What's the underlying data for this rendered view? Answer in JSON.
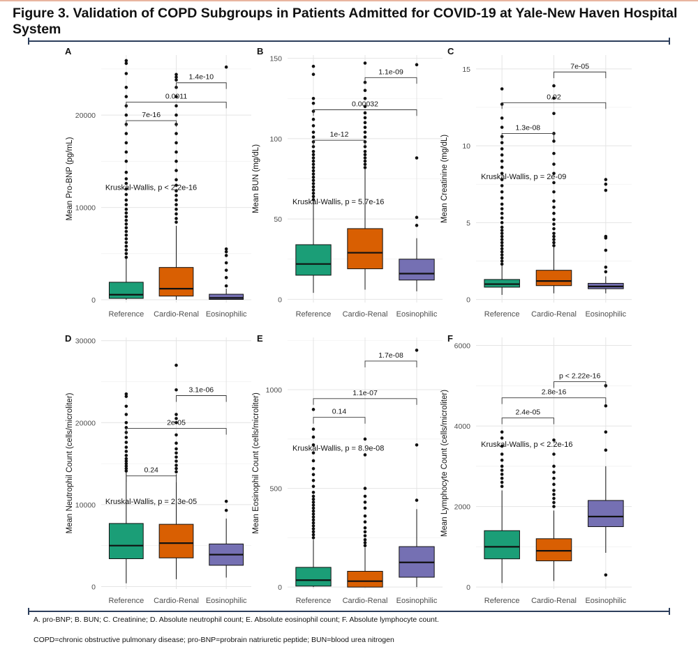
{
  "header": {
    "title": "Figure 3. Validation of COPD Subgroups in Patients Admitted for COVID-19 at Yale-New Haven Hospital System"
  },
  "footnotes": {
    "line1": "A. pro-BNP; B. BUN; C. Creatinine; D. Absolute neutrophil count; E. Absolute eosinophil count; F. Absolute lymphocyte count.",
    "line2": "COPD=chronic obstructive pulmonary disease; pro-BNP=probrain natriuretic peptide; BUN=blood urea nitrogen"
  },
  "colors": {
    "Reference": "#1b9e77",
    "Cardio-Renal": "#d95f02",
    "Eosinophilic": "#7570b3"
  },
  "chart_data": [
    {
      "panel": "A",
      "type": "box",
      "ylabel": "Mean Pro-BNP (pg/mL)",
      "ylim": [
        -300,
        26500
      ],
      "yticks": [
        0,
        10000,
        20000
      ],
      "categories": [
        "Reference",
        "Cardio-Renal",
        "Eosinophilic"
      ],
      "boxes": [
        {
          "q1": 150,
          "median": 550,
          "q3": 1900,
          "wlow": 0,
          "whigh": 4500,
          "outliers": [
            4600,
            5000,
            5400,
            5800,
            6200,
            6600,
            7000,
            7400,
            7800,
            8200,
            8600,
            9000,
            9400,
            9800,
            10300,
            10800,
            11400,
            12000,
            12600,
            13100,
            13800,
            15000,
            16000,
            17000,
            18000,
            19000,
            20000,
            21000,
            22000,
            23000,
            24500,
            25600,
            25900
          ]
        },
        {
          "q1": 400,
          "median": 1200,
          "q3": 3500,
          "wlow": 0,
          "whigh": 8000,
          "outliers": [
            8400,
            8800,
            9300,
            9800,
            10300,
            10800,
            11300,
            11800,
            12400,
            13000,
            14000,
            15000,
            16000,
            17000,
            18000,
            19000,
            20000,
            21000,
            22000,
            23000,
            23800,
            24100,
            24400
          ]
        },
        {
          "q1": 40,
          "median": 200,
          "q3": 600,
          "wlow": 0,
          "whigh": 1200,
          "outliers": [
            1500,
            2400,
            3200,
            4000,
            4800,
            5200,
            5500,
            25200
          ]
        }
      ],
      "annotations": [
        {
          "label": "7e-16",
          "from": 0,
          "to": 1,
          "y": 19400
        },
        {
          "label": "0.0011",
          "from": 0,
          "to": 2,
          "y": 21400
        },
        {
          "label": "1.4e-10",
          "from": 1,
          "to": 2,
          "y": 23500
        }
      ],
      "kw": "Kruskal-Wallis, p < 2.2e-16",
      "kw_y": 12200
    },
    {
      "panel": "B",
      "type": "box",
      "ylabel": "Mean BUN (mg/dL)",
      "ylim": [
        -2,
        152
      ],
      "yticks": [
        0,
        50,
        100,
        150
      ],
      "categories": [
        "Reference",
        "Cardio-Renal",
        "Eosinophilic"
      ],
      "boxes": [
        {
          "q1": 15,
          "median": 22,
          "q3": 34,
          "wlow": 4,
          "whigh": 61,
          "outliers": [
            62,
            64,
            66,
            68,
            70,
            72,
            74,
            76,
            78,
            80,
            82,
            84,
            86,
            88,
            90,
            92,
            95,
            98,
            101,
            104,
            108,
            112,
            117,
            122,
            125,
            140,
            145
          ]
        },
        {
          "q1": 19,
          "median": 29,
          "q3": 44,
          "wlow": 6,
          "whigh": 81,
          "outliers": [
            82,
            84,
            86,
            88,
            90,
            92,
            95,
            98,
            101,
            104,
            107,
            110,
            113,
            116,
            120,
            125,
            130,
            135,
            147
          ]
        },
        {
          "q1": 12,
          "median": 16,
          "q3": 25,
          "wlow": 5,
          "whigh": 38,
          "outliers": [
            46,
            51,
            88,
            146
          ]
        }
      ],
      "annotations": [
        {
          "label": "1e-12",
          "from": 0,
          "to": 1,
          "y": 99
        },
        {
          "label": "0.00032",
          "from": 0,
          "to": 2,
          "y": 118
        },
        {
          "label": "1.1e-09",
          "from": 1,
          "to": 2,
          "y": 138
        }
      ],
      "kw": "Kruskal-Wallis, p = 5.7e-16",
      "kw_y": 61
    },
    {
      "panel": "C",
      "type": "box",
      "ylabel": "Mean Creatinine (mg/dL)",
      "ylim": [
        -0.2,
        15.9
      ],
      "yticks": [
        0,
        5,
        10,
        15
      ],
      "categories": [
        "Reference",
        "Cardio-Renal",
        "Eosinophilic"
      ],
      "boxes": [
        {
          "q1": 0.8,
          "median": 1.0,
          "q3": 1.3,
          "wlow": 0.3,
          "whigh": 2.2,
          "outliers": [
            2.3,
            2.5,
            2.7,
            2.9,
            3.1,
            3.3,
            3.5,
            3.7,
            3.9,
            4.1,
            4.3,
            4.5,
            4.7,
            5.0,
            5.3,
            5.6,
            5.9,
            6.2,
            6.6,
            7.0,
            7.4,
            7.8,
            8.2,
            8.6,
            9.0,
            9.4,
            9.8,
            10.2,
            10.6,
            11.2,
            11.8,
            12.7,
            13.7
          ]
        },
        {
          "q1": 0.9,
          "median": 1.2,
          "q3": 1.9,
          "wlow": 0.4,
          "whigh": 3.4,
          "outliers": [
            3.5,
            3.7,
            3.9,
            4.1,
            4.3,
            4.6,
            4.9,
            5.2,
            5.6,
            6.0,
            6.4,
            7.0,
            7.6,
            8.2,
            8.8,
            9.5,
            10.3,
            10.8,
            12.1,
            13.1,
            13.9
          ]
        },
        {
          "q1": 0.7,
          "median": 0.85,
          "q3": 1.05,
          "wlow": 0.4,
          "whigh": 1.5,
          "outliers": [
            1.8,
            2.1,
            3.2,
            4.0,
            4.1,
            7.1,
            7.5,
            7.8
          ]
        }
      ],
      "annotations": [
        {
          "label": "1.3e-08",
          "from": 0,
          "to": 1,
          "y": 10.8
        },
        {
          "label": "0.02",
          "from": 0,
          "to": 2,
          "y": 12.8
        },
        {
          "label": "7e-05",
          "from": 1,
          "to": 2,
          "y": 14.8
        }
      ],
      "kw": "Kruskal-Wallis, p = 2e-09",
      "kw_y": 8.0
    },
    {
      "panel": "D",
      "type": "box",
      "ylabel": "Mean Neutrophil Count (cells/microliter)",
      "ylim": [
        -300,
        30400
      ],
      "yticks": [
        0,
        10000,
        20000,
        30000
      ],
      "categories": [
        "Reference",
        "Cardio-Renal",
        "Eosinophilic"
      ],
      "boxes": [
        {
          "q1": 3400,
          "median": 5000,
          "q3": 7700,
          "wlow": 400,
          "whigh": 13900,
          "outliers": [
            14100,
            14400,
            14700,
            15000,
            15300,
            15600,
            16000,
            16500,
            17000,
            17600,
            18200,
            18800,
            19400,
            20000,
            21000,
            22000,
            23200,
            23500
          ]
        },
        {
          "q1": 3500,
          "median": 5300,
          "q3": 7600,
          "wlow": 900,
          "whigh": 13700,
          "outliers": [
            14000,
            14400,
            14800,
            15300,
            15800,
            16300,
            16800,
            17500,
            18500,
            20000,
            20500,
            21000,
            24000,
            27000
          ]
        },
        {
          "q1": 2600,
          "median": 3900,
          "q3": 5200,
          "wlow": 1100,
          "whigh": 8300,
          "outliers": [
            9300,
            10400
          ]
        }
      ],
      "annotations": [
        {
          "label": "0.24",
          "from": 0,
          "to": 1,
          "y": 13500
        },
        {
          "label": "2e-05",
          "from": 0,
          "to": 2,
          "y": 19300
        },
        {
          "label": "3.1e-06",
          "from": 1,
          "to": 2,
          "y": 23300
        }
      ],
      "kw": "Kruskal-Wallis, p = 2.3e-05",
      "kw_y": 10400
    },
    {
      "panel": "E",
      "type": "box",
      "ylabel": "Mean Eosinophil Count (cells/microliter)",
      "ylim": [
        -10,
        1265
      ],
      "yticks": [
        0,
        500,
        1000
      ],
      "categories": [
        "Reference",
        "Cardio-Renal",
        "Eosinophilic"
      ],
      "boxes": [
        {
          "q1": 5,
          "median": 35,
          "q3": 100,
          "wlow": 0,
          "whigh": 240,
          "outliers": [
            250,
            265,
            280,
            295,
            310,
            325,
            340,
            355,
            370,
            385,
            400,
            415,
            430,
            445,
            460,
            480,
            510,
            540,
            570,
            600,
            640,
            680,
            720,
            760,
            800,
            900
          ]
        },
        {
          "q1": 0,
          "median": 30,
          "q3": 80,
          "wlow": 0,
          "whigh": 200,
          "outliers": [
            210,
            225,
            240,
            260,
            280,
            300,
            330,
            360,
            400,
            430,
            460,
            500,
            670,
            750
          ]
        },
        {
          "q1": 50,
          "median": 125,
          "q3": 205,
          "wlow": 0,
          "whigh": 395,
          "outliers": [
            440,
            720,
            1200
          ]
        }
      ],
      "annotations": [
        {
          "label": "0.14",
          "from": 0,
          "to": 1,
          "y": 860
        },
        {
          "label": "1.1e-07",
          "from": 0,
          "to": 2,
          "y": 955
        },
        {
          "label": "1.7e-08",
          "from": 1,
          "to": 2,
          "y": 1145
        }
      ],
      "kw": "Kruskal-Wallis, p = 8.9e-08",
      "kw_y": 705
    },
    {
      "panel": "F",
      "type": "box",
      "ylabel": "Mean Lymphocyte Count (cells/microliter)",
      "ylim": [
        -50,
        6200
      ],
      "yticks": [
        0,
        2000,
        4000,
        6000
      ],
      "categories": [
        "Reference",
        "Cardio-Renal",
        "Eosinophilic"
      ],
      "boxes": [
        {
          "q1": 700,
          "median": 1000,
          "q3": 1400,
          "wlow": 100,
          "whigh": 2400,
          "outliers": [
            2500,
            2600,
            2700,
            2800,
            2900,
            3000,
            3150,
            3300,
            3500,
            3700,
            3850
          ]
        },
        {
          "q1": 650,
          "median": 900,
          "q3": 1200,
          "wlow": 150,
          "whigh": 1900,
          "outliers": [
            2000,
            2100,
            2200,
            2300,
            2400,
            2550,
            2700,
            2850,
            3000,
            3300,
            3650
          ]
        },
        {
          "q1": 1500,
          "median": 1750,
          "q3": 2150,
          "wlow": 850,
          "whigh": 3000,
          "outliers": [
            300,
            3400,
            3850,
            4500,
            5000
          ]
        }
      ],
      "annotations": [
        {
          "label": "2.4e-05",
          "from": 0,
          "to": 1,
          "y": 4200
        },
        {
          "label": "2.8e-16",
          "from": 0,
          "to": 2,
          "y": 4700
        },
        {
          "label": "p < 2.22e-16",
          "from": 1,
          "to": 2,
          "y": 5100
        }
      ],
      "kw": "Kruskal-Wallis, p < 2.2e-16",
      "kw_y": 3550
    }
  ]
}
